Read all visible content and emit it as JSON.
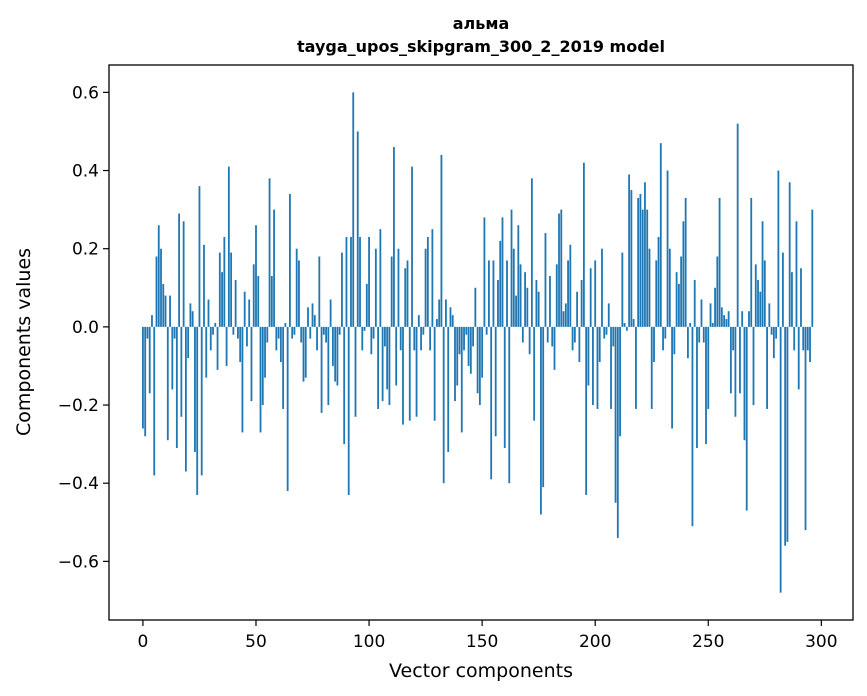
{
  "chart_data": {
    "type": "bar",
    "title_line1": "альма",
    "title_line2": "tayga_upos_skipgram_300_2_2019 model",
    "xlabel": "Vector components",
    "ylabel": "Components values",
    "xlim": [
      -15,
      314
    ],
    "ylim": [
      -0.75,
      0.67
    ],
    "xticks": [
      0,
      50,
      100,
      150,
      200,
      250,
      300
    ],
    "yticks": [
      -0.6,
      -0.4,
      -0.2,
      0.0,
      0.2,
      0.4,
      0.6
    ],
    "xtick_labels": [
      "0",
      "50",
      "100",
      "150",
      "200",
      "250",
      "300"
    ],
    "ytick_labels": [
      "−0.6",
      "−0.4",
      "−0.2",
      "0.0",
      "0.2",
      "0.4",
      "0.6"
    ],
    "bar_color": "#1f77b4",
    "grid": false,
    "values": [
      -0.26,
      -0.28,
      -0.03,
      -0.17,
      0.03,
      -0.38,
      0.18,
      0.26,
      0.2,
      0.11,
      0.08,
      -0.29,
      0.08,
      -0.16,
      -0.03,
      -0.31,
      0.29,
      -0.23,
      0.27,
      -0.37,
      -0.08,
      0.06,
      0.04,
      -0.32,
      -0.43,
      0.36,
      -0.38,
      0.21,
      -0.13,
      0.07,
      -0.06,
      -0.02,
      0.01,
      -0.11,
      0.19,
      0.14,
      0.23,
      -0.1,
      0.41,
      0.19,
      -0.02,
      0.12,
      -0.03,
      -0.09,
      -0.27,
      0.09,
      -0.05,
      0.07,
      -0.19,
      0.16,
      0.26,
      0.13,
      -0.27,
      -0.2,
      -0.13,
      -0.04,
      0.38,
      0.13,
      0.3,
      -0.06,
      -0.03,
      -0.09,
      -0.21,
      0.01,
      -0.42,
      0.34,
      -0.03,
      -0.02,
      0.2,
      0.17,
      -0.04,
      -0.14,
      -0.13,
      0.05,
      -0.03,
      0.06,
      0.03,
      -0.06,
      0.18,
      -0.22,
      -0.02,
      -0.04,
      -0.2,
      0.07,
      -0.1,
      -0.14,
      -0.15,
      -0.02,
      0.19,
      -0.3,
      0.23,
      -0.43,
      0.23,
      0.6,
      -0.23,
      0.5,
      0.23,
      -0.06,
      -0.01,
      0.11,
      0.23,
      -0.07,
      -0.03,
      0.2,
      -0.21,
      0.25,
      -0.19,
      -0.05,
      -0.16,
      -0.2,
      0.18,
      0.46,
      -0.15,
      0.2,
      -0.06,
      -0.25,
      0.15,
      0.17,
      -0.24,
      0.41,
      -0.06,
      -0.23,
      0.03,
      -0.06,
      -0.02,
      0.2,
      0.23,
      -0.06,
      0.25,
      -0.24,
      0.02,
      0.07,
      0.44,
      -0.4,
      0.07,
      -0.32,
      0.05,
      0.03,
      -0.19,
      -0.15,
      -0.07,
      -0.27,
      -0.06,
      -0.02,
      -0.1,
      -0.12,
      -0.05,
      0.1,
      -0.17,
      -0.2,
      -0.13,
      0.28,
      -0.02,
      0.17,
      -0.39,
      0.17,
      -0.28,
      0.12,
      0.22,
      0.28,
      -0.31,
      0.17,
      -0.4,
      0.3,
      0.2,
      0.08,
      0.26,
      0.16,
      -0.04,
      0.14,
      0.1,
      -0.07,
      0.38,
      -0.24,
      0.12,
      0.09,
      -0.48,
      -0.41,
      0.24,
      -0.04,
      0.13,
      -0.05,
      -0.11,
      0.16,
      0.29,
      0.3,
      0.04,
      0.06,
      0.17,
      0.21,
      -0.06,
      -0.04,
      0.09,
      -0.09,
      0.12,
      0.42,
      -0.43,
      -0.15,
      0.15,
      -0.2,
      0.17,
      -0.21,
      -0.09,
      0.2,
      -0.03,
      -0.02,
      0.06,
      -0.21,
      -0.05,
      -0.45,
      -0.54,
      -0.28,
      0.19,
      0.01,
      -0.01,
      0.39,
      0.35,
      0.02,
      -0.21,
      0.33,
      0.34,
      0.3,
      0.37,
      0.3,
      0.2,
      -0.21,
      -0.09,
      0.17,
      0.23,
      0.47,
      -0.06,
      -0.03,
      0.4,
      0.2,
      -0.26,
      -0.07,
      0.14,
      0.11,
      0.18,
      0.27,
      0.33,
      -0.08,
      0.01,
      -0.51,
      0.12,
      -0.31,
      -0.04,
      0.07,
      -0.04,
      -0.3,
      -0.21,
      0.06,
      0.01,
      0.1,
      0.18,
      0.33,
      0.05,
      0.03,
      0.02,
      0.04,
      -0.17,
      -0.06,
      -0.23,
      0.52,
      -0.17,
      0.04,
      -0.29,
      -0.47,
      0.04,
      0.33,
      -0.2,
      0.16,
      0.12,
      0.09,
      0.27,
      0.17,
      -0.21,
      0.06,
      -0.02,
      -0.08,
      -0.03,
      0.4,
      -0.68,
      0.19,
      -0.56,
      -0.55,
      0.37,
      0.14,
      -0.06,
      0.27,
      -0.16,
      0.15,
      -0.06,
      -0.52,
      -0.06,
      -0.09,
      0.3
    ]
  }
}
